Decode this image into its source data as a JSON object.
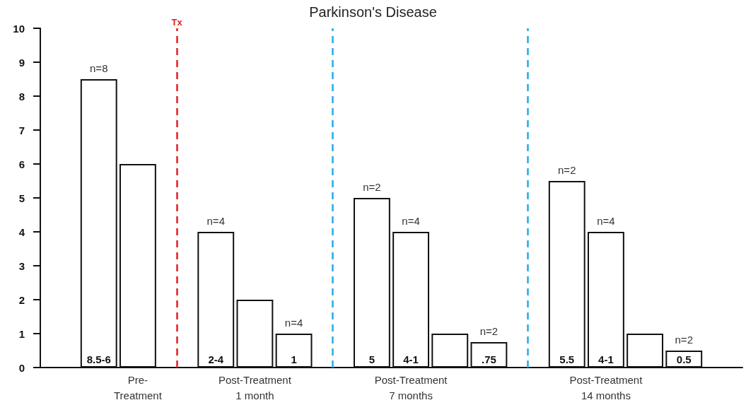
{
  "chart_data": {
    "type": "bar",
    "title": "Parkinson's Disease",
    "categories": [
      null,
      null,
      "Pre-\nTreatment",
      null,
      null,
      "Post-Treatment\n1 month",
      null,
      null,
      null,
      "Post-Treatment\n7 months",
      null,
      null,
      null,
      null,
      "Post-Treatment\n14 months",
      null,
      null,
      null
    ],
    "values": [
      null,
      8.5,
      6,
      null,
      4,
      2,
      1,
      null,
      5,
      4,
      1,
      0.75,
      null,
      5.5,
      4,
      1,
      0.5,
      null
    ],
    "value_labels": [
      null,
      "8.5-6",
      null,
      null,
      "2-4",
      null,
      "1",
      null,
      "5",
      "4-1",
      null,
      ".75",
      null,
      "5.5",
      "4-1",
      null,
      "0.5",
      null
    ],
    "color": "#ffffff",
    "ylim": [
      0,
      10
    ],
    "yticks": [
      0,
      1,
      2,
      3,
      4,
      5,
      6,
      7,
      8,
      9,
      10
    ],
    "annotations": [
      "Tx",
      "n=8",
      "n=4",
      "n=4",
      "n=2",
      "n=4",
      "n=2",
      "n=2",
      "n=4",
      "n=2"
    ]
  }
}
